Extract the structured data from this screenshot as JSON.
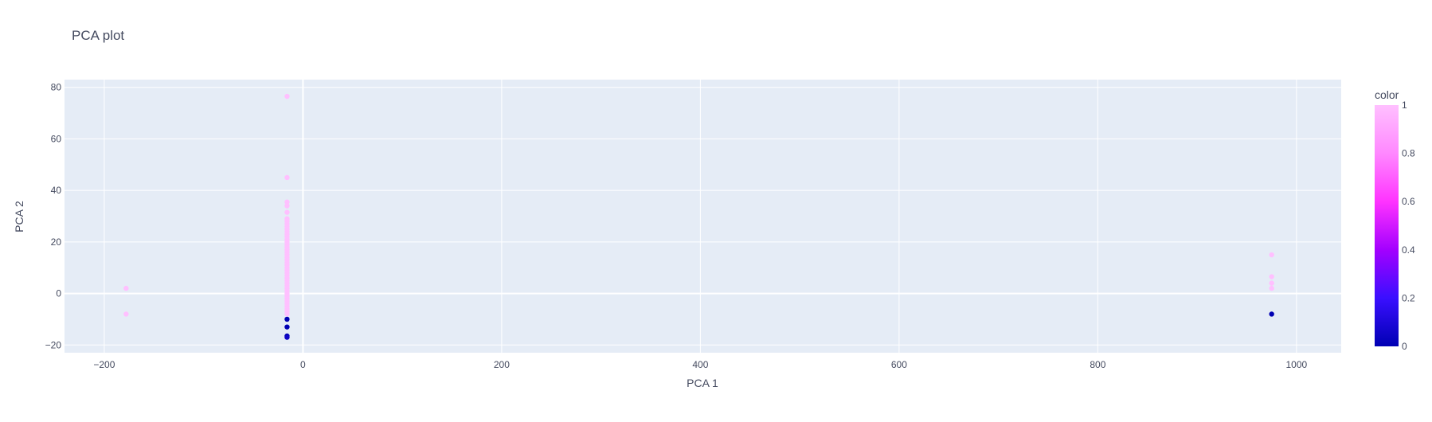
{
  "chart_data": {
    "type": "scatter",
    "title": "PCA plot",
    "xlabel": "PCA 1",
    "ylabel": "PCA 2",
    "xlim": [
      -240,
      1045
    ],
    "ylim": [
      -23,
      83
    ],
    "xticks": [
      -200,
      0,
      200,
      400,
      600,
      800,
      1000
    ],
    "yticks": [
      -20,
      0,
      20,
      40,
      60,
      80
    ],
    "grid": true,
    "colorscale": [
      "#0000b3",
      "#3a0fff",
      "#a300ff",
      "#ff33ff",
      "#ff88ff",
      "#ffc0ff"
    ],
    "colorbar": {
      "title": "color",
      "range": [
        0,
        1
      ],
      "ticks": [
        0,
        0.2,
        0.4,
        0.6,
        0.8,
        1
      ],
      "tick_labels": [
        "0",
        "0.2",
        "0.4",
        "0.6",
        "0.8",
        "1"
      ],
      "legend_position": "right"
    },
    "points": [
      {
        "x": 975,
        "y": -8,
        "c": 0
      },
      {
        "x": 975,
        "y": 15,
        "c": 1
      },
      {
        "x": 975,
        "y": 6.5,
        "c": 1
      },
      {
        "x": 975,
        "y": 4,
        "c": 1
      },
      {
        "x": 975,
        "y": 2,
        "c": 1
      },
      {
        "x": -178,
        "y": 2,
        "c": 1
      },
      {
        "x": -178,
        "y": -8,
        "c": 1
      },
      {
        "x": -16,
        "y": 76.5,
        "c": 1
      },
      {
        "x": -16,
        "y": 45,
        "c": 1
      },
      {
        "x": -16,
        "y": 35.5,
        "c": 1
      },
      {
        "x": -16,
        "y": 34,
        "c": 1
      },
      {
        "x": -16,
        "y": 31.5,
        "c": 1
      },
      {
        "x": -16,
        "y": 29,
        "c": 1
      },
      {
        "x": -16,
        "y": 28,
        "c": 1
      },
      {
        "x": -16,
        "y": 27,
        "c": 1
      },
      {
        "x": -16,
        "y": 26,
        "c": 1
      },
      {
        "x": -16,
        "y": 25,
        "c": 1
      },
      {
        "x": -16,
        "y": 24,
        "c": 1
      },
      {
        "x": -16,
        "y": 23,
        "c": 1
      },
      {
        "x": -16,
        "y": 22,
        "c": 1
      },
      {
        "x": -16,
        "y": 21,
        "c": 1
      },
      {
        "x": -16,
        "y": 20,
        "c": 1
      },
      {
        "x": -16,
        "y": 19,
        "c": 1
      },
      {
        "x": -16,
        "y": 18,
        "c": 1
      },
      {
        "x": -16,
        "y": 17,
        "c": 1
      },
      {
        "x": -16,
        "y": 16,
        "c": 1
      },
      {
        "x": -16,
        "y": 15,
        "c": 1
      },
      {
        "x": -16,
        "y": 14,
        "c": 1
      },
      {
        "x": -16,
        "y": 13,
        "c": 1
      },
      {
        "x": -16,
        "y": 12,
        "c": 1
      },
      {
        "x": -16,
        "y": 11,
        "c": 1
      },
      {
        "x": -16,
        "y": 10,
        "c": 1
      },
      {
        "x": -16,
        "y": 9,
        "c": 1
      },
      {
        "x": -16,
        "y": 8,
        "c": 1
      },
      {
        "x": -16,
        "y": 7,
        "c": 1
      },
      {
        "x": -16,
        "y": 6,
        "c": 1
      },
      {
        "x": -16,
        "y": 5,
        "c": 1
      },
      {
        "x": -16,
        "y": 4,
        "c": 1
      },
      {
        "x": -16,
        "y": 3,
        "c": 1
      },
      {
        "x": -16,
        "y": 2,
        "c": 1
      },
      {
        "x": -16,
        "y": 1,
        "c": 1
      },
      {
        "x": -16,
        "y": 0,
        "c": 1
      },
      {
        "x": -16,
        "y": -1,
        "c": 1
      },
      {
        "x": -16,
        "y": -2,
        "c": 1
      },
      {
        "x": -16,
        "y": -3,
        "c": 1
      },
      {
        "x": -16,
        "y": -4,
        "c": 1
      },
      {
        "x": -16,
        "y": -5,
        "c": 1
      },
      {
        "x": -16,
        "y": -6,
        "c": 1
      },
      {
        "x": -16,
        "y": -7,
        "c": 1
      },
      {
        "x": -16,
        "y": -8,
        "c": 1
      },
      {
        "x": -16,
        "y": -10,
        "c": 0
      },
      {
        "x": -16,
        "y": -13,
        "c": 0
      },
      {
        "x": -16,
        "y": -16.5,
        "c": 0
      },
      {
        "x": -16,
        "y": -17,
        "c": 0.05
      }
    ]
  }
}
